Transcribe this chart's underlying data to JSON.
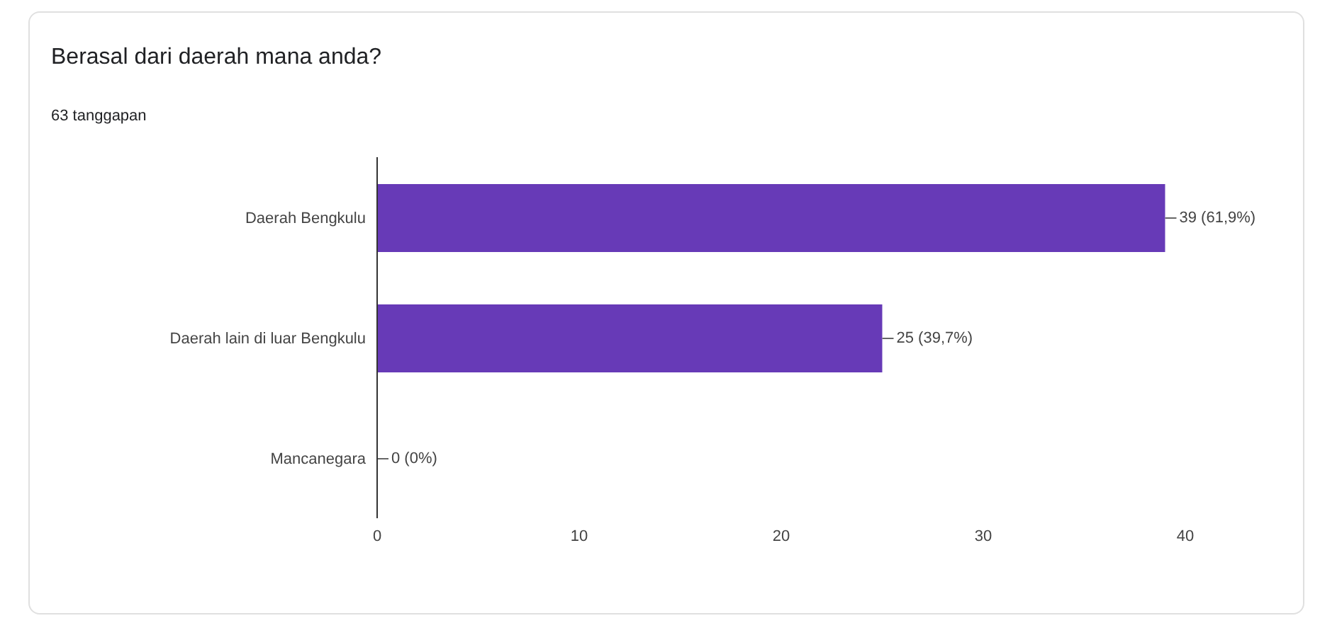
{
  "chart_data": {
    "type": "bar",
    "orientation": "horizontal",
    "title": "Berasal dari daerah mana anda?",
    "subtitle": "63 tanggapan",
    "categories": [
      "Daerah Bengkulu",
      "Daerah lain di luar Bengkulu",
      "Mancanegara"
    ],
    "values": [
      39,
      25,
      0
    ],
    "color": "#673ab7",
    "value_labels": [
      "39 (61,9%)",
      "25 (39,7%)",
      "0 (0%)"
    ],
    "xlim": [
      0,
      40
    ],
    "xticks": [
      0,
      10,
      20,
      30,
      40
    ],
    "grid": false,
    "legend": false
  }
}
